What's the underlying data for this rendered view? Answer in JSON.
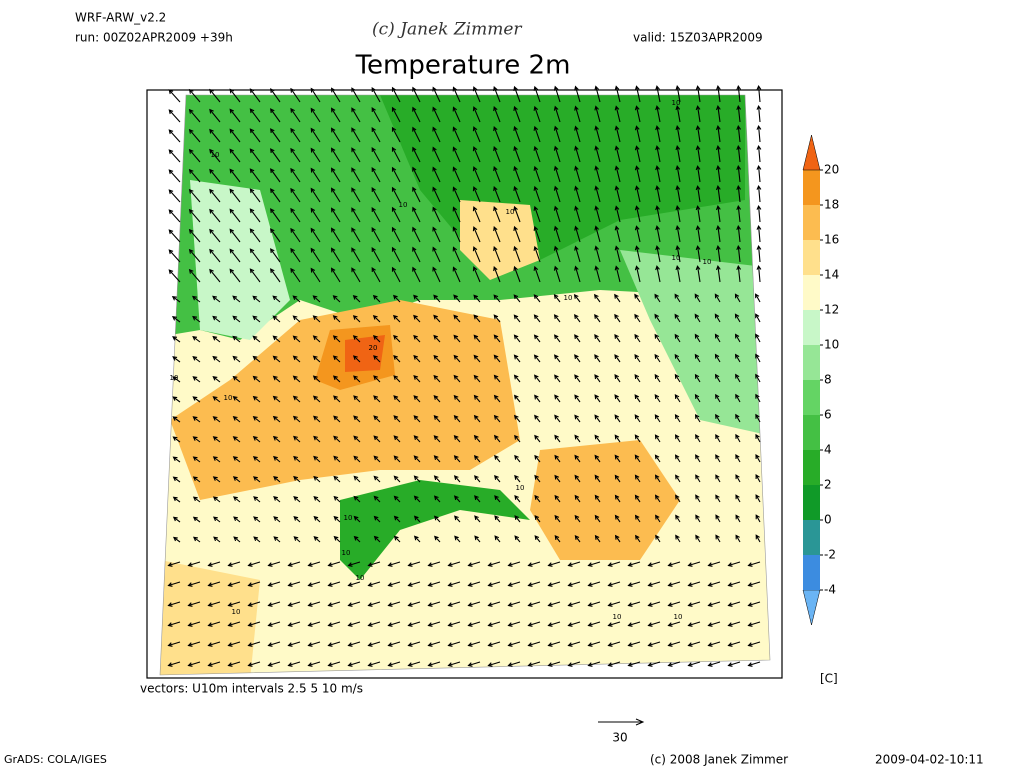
{
  "header": {
    "model": "WRF-ARW_v2.2",
    "run": "run: 00Z02APR2009 +39h",
    "watermark": "(c) Janek Zimmer",
    "valid": "valid: 15Z03APR2009"
  },
  "title": "Temperature 2m",
  "map": {
    "caption": "vectors: U10m intervals 2.5 5 10 m/s",
    "contour_labels": [
      "10",
      "10",
      "10",
      "10",
      "10",
      "10",
      "10",
      "10",
      "10",
      "20",
      "10",
      "10",
      "10",
      "10",
      "10",
      "10",
      "10"
    ]
  },
  "colorbar": {
    "levels": [
      -4,
      -2,
      0,
      2,
      4,
      6,
      8,
      10,
      12,
      14,
      16,
      18,
      20
    ],
    "colors": [
      "#6ab4f4",
      "#3c8ce0",
      "#2a9696",
      "#109a28",
      "#28ac28",
      "#44c044",
      "#64d464",
      "#96e696",
      "#c8f7c8",
      "#fffac8",
      "#ffe08c",
      "#fcbc50",
      "#f4961e",
      "#f06414"
    ],
    "unit": "[C]"
  },
  "footer": {
    "reference_vector": "30",
    "left": "GrADS: COLA/IGES",
    "center": "(c) 2008 Janek Zimmer",
    "right": "2009-04-02-10:11"
  }
}
